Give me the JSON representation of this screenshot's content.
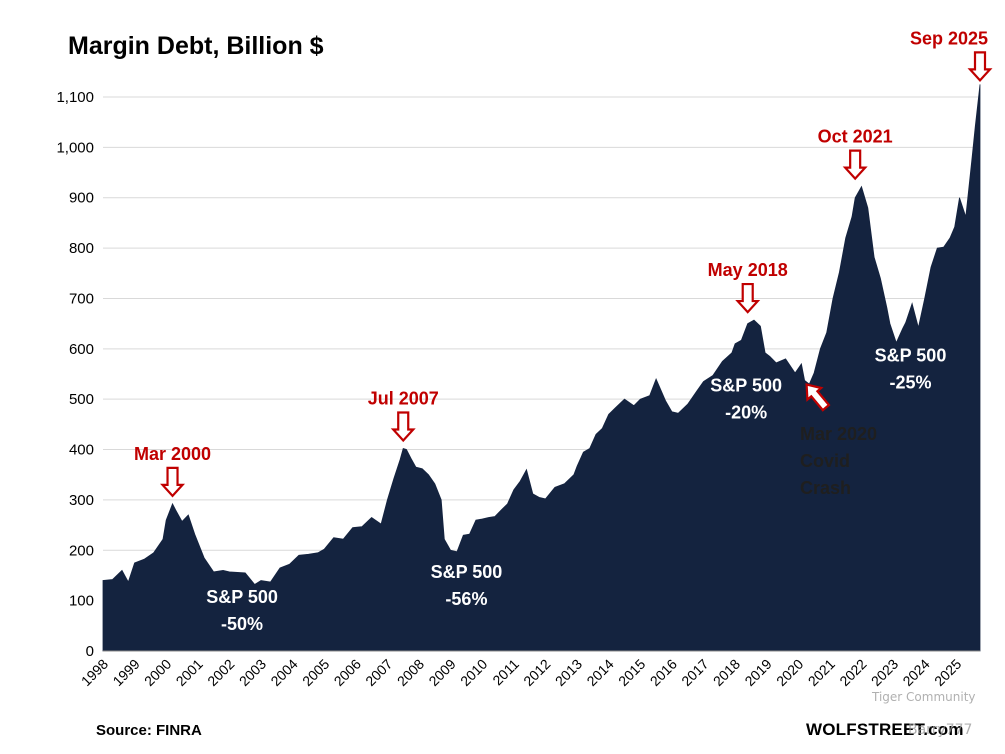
{
  "chart_data": {
    "type": "area",
    "title": "Margin Debt, Billion $",
    "source": "Source: FINRA",
    "brand": "WOLFSTREET.com",
    "ylim": [
      0,
      1100
    ],
    "yticks": [
      0,
      100,
      200,
      300,
      400,
      500,
      600,
      700,
      800,
      900,
      1000,
      1100
    ],
    "ytick_labels": [
      "0",
      "100",
      "200",
      "300",
      "400",
      "500",
      "600",
      "700",
      "800",
      "900",
      "1,000",
      "1,100"
    ],
    "xlim": [
      1998.0,
      2025.75
    ],
    "xtick_labels": [
      "1998",
      "1999",
      "2000",
      "2001",
      "2002",
      "2003",
      "2004",
      "2005",
      "2006",
      "2007",
      "2008",
      "2009",
      "2010",
      "2011",
      "2012",
      "2013",
      "2014",
      "2015",
      "2016",
      "2017",
      "2018",
      "2019",
      "2020",
      "2021",
      "2022",
      "2023",
      "2024",
      "2025"
    ],
    "grid": true,
    "colors": {
      "area": "#14233f",
      "annotation": "#c00000",
      "grid": "#d9d9d9",
      "text": "#000000",
      "area_label": "#ffffff"
    },
    "series": [
      {
        "name": "Margin Debt",
        "x": [
          1998.0,
          1998.3,
          1998.6,
          1998.8,
          1999.0,
          1999.3,
          1999.6,
          1999.9,
          2000.0,
          2000.2,
          2000.3,
          2000.5,
          2000.7,
          2000.9,
          2001.2,
          2001.5,
          2001.8,
          2002.0,
          2002.5,
          2002.8,
          2003.0,
          2003.3,
          2003.6,
          2003.9,
          2004.2,
          2004.5,
          2004.8,
          2005.0,
          2005.3,
          2005.6,
          2005.9,
          2006.2,
          2006.5,
          2006.8,
          2007.0,
          2007.2,
          2007.4,
          2007.5,
          2007.6,
          2007.75,
          2007.9,
          2008.1,
          2008.3,
          2008.5,
          2008.7,
          2008.8,
          2009.0,
          2009.2,
          2009.4,
          2009.6,
          2009.8,
          2010.0,
          2010.2,
          2010.4,
          2010.6,
          2010.8,
          2011.0,
          2011.2,
          2011.4,
          2011.6,
          2011.8,
          2012.0,
          2012.3,
          2012.6,
          2012.9,
          2013.0,
          2013.2,
          2013.4,
          2013.6,
          2013.8,
          2014.0,
          2014.2,
          2014.5,
          2014.8,
          2015.0,
          2015.3,
          2015.5,
          2015.8,
          2016.0,
          2016.2,
          2016.5,
          2016.8,
          2017.0,
          2017.3,
          2017.6,
          2017.9,
          2018.0,
          2018.2,
          2018.4,
          2018.6,
          2018.8,
          2018.95,
          2019.1,
          2019.3,
          2019.6,
          2019.9,
          2020.1,
          2020.2,
          2020.35,
          2020.5,
          2020.7,
          2020.9,
          2021.1,
          2021.3,
          2021.5,
          2021.7,
          2021.8,
          2022.0,
          2022.2,
          2022.4,
          2022.6,
          2022.8,
          2022.9,
          2023.1,
          2023.3,
          2023.4,
          2023.6,
          2023.8,
          2024.0,
          2024.2,
          2024.4,
          2024.6,
          2024.8,
          2024.95,
          2025.1,
          2025.3,
          2025.5,
          2025.6,
          2025.75
        ],
        "values": [
          140,
          150,
          160,
          145,
          175,
          190,
          195,
          230,
          260,
          300,
          280,
          265,
          270,
          240,
          185,
          165,
          160,
          165,
          155,
          140,
          140,
          145,
          165,
          180,
          190,
          200,
          195,
          210,
          225,
          230,
          245,
          255,
          265,
          260,
          300,
          350,
          380,
          410,
          400,
          390,
          365,
          370,
          350,
          340,
          300,
          230,
          200,
          205,
          230,
          240,
          260,
          270,
          265,
          275,
          280,
          300,
          320,
          345,
          360,
          320,
          305,
          310,
          325,
          340,
          350,
          375,
          395,
          410,
          430,
          450,
          470,
          490,
          500,
          495,
          500,
          515,
          540,
          505,
          475,
          480,
          490,
          525,
          535,
          555,
          575,
          600,
          610,
          625,
          650,
          665,
          645,
          600,
          585,
          580,
          580,
          560,
          570,
          545,
          530,
          560,
          600,
          640,
          700,
          760,
          820,
          870,
          900,
          930,
          880,
          790,
          740,
          690,
          650,
          620,
          640,
          660,
          690,
          650,
          700,
          770,
          800,
          810,
          820,
          850,
          900,
          870,
          980,
          1050,
          1125
        ]
      }
    ],
    "peak_annotations": [
      {
        "label": "Mar 2000",
        "x": 2000.2,
        "y": 300
      },
      {
        "label": "Jul 2007",
        "x": 2007.5,
        "y": 410
      },
      {
        "label": "May 2018",
        "x": 2018.4,
        "y": 665
      },
      {
        "label": "Oct 2021",
        "x": 2021.8,
        "y": 930
      },
      {
        "label": "Sep 2025",
        "x": 2025.75,
        "y": 1125
      }
    ],
    "covid_annotation": {
      "lines": [
        "Mar 2020",
        "Covid",
        "Crash"
      ],
      "x": 2020.2,
      "y": 525
    },
    "area_labels": [
      {
        "lines": [
          "S&P 500",
          "-50%"
        ],
        "x": 2002.4,
        "y": 95
      },
      {
        "lines": [
          "S&P 500",
          "-56%"
        ],
        "x": 2009.5,
        "y": 145
      },
      {
        "lines": [
          "S&P 500",
          "-20%"
        ],
        "x": 2018.35,
        "y": 515
      },
      {
        "lines": [
          "S&P 500",
          "-25%"
        ],
        "x": 2023.55,
        "y": 575
      }
    ],
    "watermarks": [
      "Tiger Community",
      "Barry777"
    ]
  }
}
